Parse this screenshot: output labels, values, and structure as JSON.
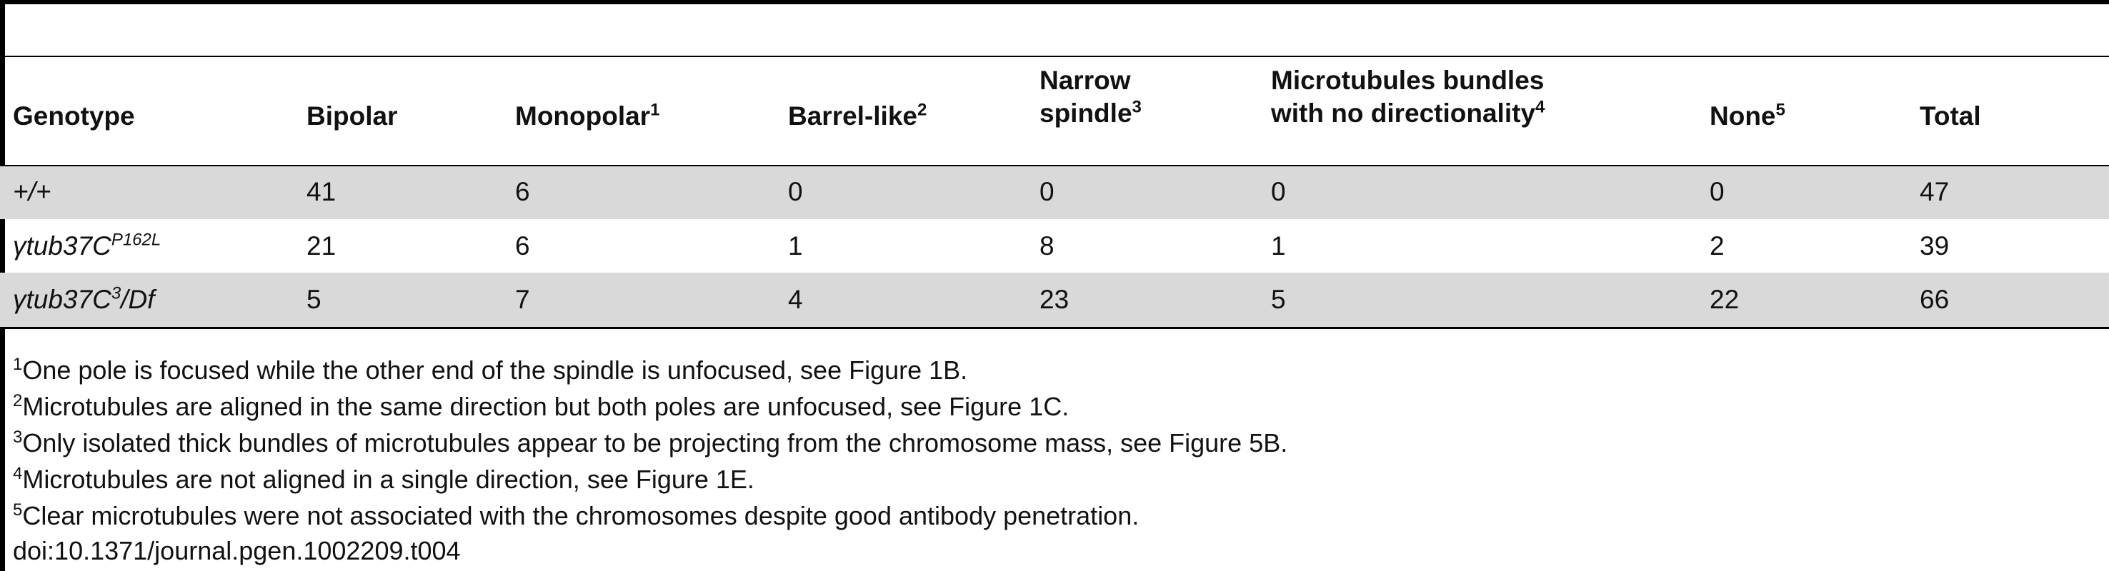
{
  "table": {
    "header": [
      {
        "lines": [
          "Genotype"
        ]
      },
      {
        "lines": [
          "Bipolar"
        ]
      },
      {
        "lines": [
          "Monopolar"
        ],
        "sup": "1"
      },
      {
        "lines": [
          "Barrel-like"
        ],
        "sup": "2"
      },
      {
        "lines": [
          "Narrow",
          "spindle"
        ],
        "sup": "3"
      },
      {
        "lines": [
          "Microtubules bundles",
          "with no directionality"
        ],
        "sup": "4"
      },
      {
        "lines": [
          "None"
        ],
        "sup": "5"
      },
      {
        "lines": [
          "Total"
        ]
      }
    ],
    "rows": [
      {
        "genotype": [
          "+/+"
        ],
        "values": [
          41,
          6,
          0,
          0,
          0,
          0,
          47
        ]
      },
      {
        "genotype": [
          "γtub37C",
          "P162L"
        ],
        "values": [
          21,
          6,
          1,
          8,
          1,
          2,
          39
        ]
      },
      {
        "genotype": [
          "γtub37C",
          "3",
          "/Df"
        ],
        "values": [
          5,
          7,
          4,
          23,
          5,
          22,
          66
        ]
      }
    ]
  },
  "footnotes": [
    {
      "mark": "1",
      "text": "One pole is focused while the other end of the spindle is unfocused, see Figure 1B."
    },
    {
      "mark": "2",
      "text": "Microtubules are aligned in the same direction but both poles are unfocused, see Figure 1C."
    },
    {
      "mark": "3",
      "text": "Only isolated thick bundles of microtubules appear to be projecting from the chromosome mass, see Figure 5B."
    },
    {
      "mark": "4",
      "text": "Microtubules are not aligned in a single direction, see Figure 1E."
    },
    {
      "mark": "5",
      "text": "Clear microtubules were not associated with the chromosomes despite good antibody penetration."
    }
  ],
  "doi": "doi:10.1371/journal.pgen.1002209.t004"
}
